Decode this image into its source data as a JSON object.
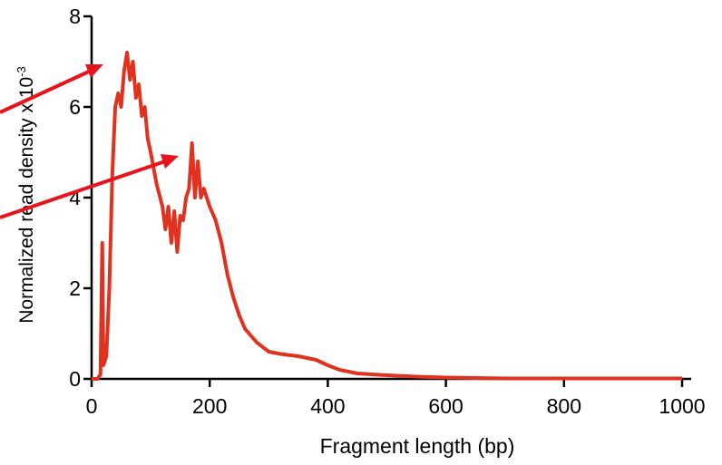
{
  "chart_data": {
    "type": "line",
    "xlabel": "Fragment length (bp)",
    "ylabel": "Normalized read density x 10",
    "ylabel_exponent": "-3",
    "x": [
      0,
      10,
      15,
      18,
      20,
      25,
      30,
      35,
      40,
      45,
      50,
      55,
      60,
      65,
      70,
      75,
      80,
      85,
      90,
      95,
      100,
      110,
      120,
      125,
      130,
      135,
      140,
      145,
      150,
      155,
      160,
      165,
      170,
      175,
      180,
      185,
      190,
      200,
      210,
      220,
      230,
      240,
      250,
      260,
      280,
      300,
      320,
      350,
      380,
      400,
      420,
      450,
      500,
      550,
      600,
      700,
      800,
      1000
    ],
    "series": [
      {
        "color": "#e0321f",
        "values": [
          0,
          0,
          0.1,
          3.0,
          0.3,
          0.5,
          2,
          4.5,
          6,
          6.3,
          6.0,
          6.8,
          7.2,
          6.6,
          7.0,
          6.2,
          6.5,
          5.8,
          6.0,
          5.3,
          5.0,
          4.3,
          3.8,
          3.3,
          3.8,
          3.0,
          3.7,
          2.8,
          3.6,
          3.5,
          4.0,
          4.2,
          5.2,
          4.0,
          4.8,
          4.0,
          4.2,
          3.8,
          3.5,
          3.0,
          2.3,
          1.8,
          1.4,
          1.1,
          0.8,
          0.6,
          0.55,
          0.5,
          0.42,
          0.3,
          0.2,
          0.12,
          0.08,
          0.05,
          0.03,
          0.01,
          0.01,
          0.01
        ]
      }
    ],
    "xlim": [
      0,
      1000
    ],
    "xticks": [
      0,
      200,
      400,
      600,
      800,
      1000
    ],
    "ylim": [
      0,
      8
    ],
    "yticks": [
      0,
      2,
      4,
      6,
      8
    ]
  }
}
